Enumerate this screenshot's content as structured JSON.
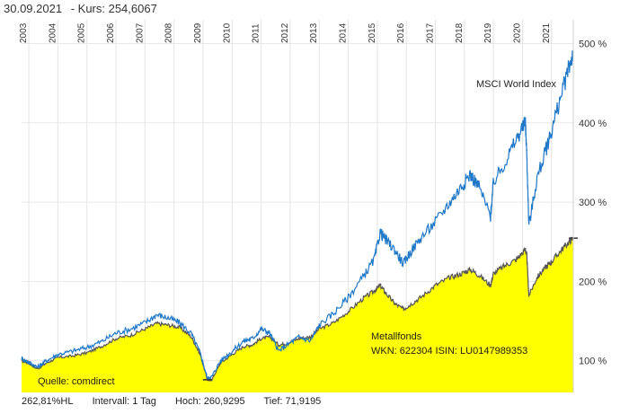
{
  "header": {
    "date": "30.09.2021",
    "price_label": "- Kurs: 254,6067"
  },
  "footer": {
    "performance": "262,81%HL",
    "interval": "Intervall: 1 Tag",
    "high": "Hoch: 260,9295",
    "low": "Tief: 71,9195"
  },
  "chart_data": {
    "type": "area",
    "title": "",
    "xlabel": "",
    "ylabel": "",
    "x_range": [
      2002.75,
      2021.75
    ],
    "ylim": [
      60,
      530
    ],
    "y_tick_values": [
      100,
      200,
      300,
      400,
      500
    ],
    "y_tick_labels": [
      "100 %",
      "200 %",
      "300 %",
      "400 %",
      "500 %"
    ],
    "x_tick_labels": [
      "2003",
      "2004",
      "2005",
      "2006",
      "2007",
      "2008",
      "2009",
      "2010",
      "2011",
      "2012",
      "2013",
      "2014",
      "2015",
      "2016",
      "2017",
      "2018",
      "2019",
      "2020",
      "2021"
    ],
    "grid": true,
    "series": [
      {
        "name": "Metallfonds",
        "color": "#555555",
        "fill": "#ffff00",
        "x": [
          2002.75,
          2003.0,
          2003.3,
          2003.6,
          2004.0,
          2004.5,
          2005.0,
          2005.5,
          2006.0,
          2006.5,
          2007.0,
          2007.4,
          2007.8,
          2008.2,
          2008.6,
          2008.9,
          2009.15,
          2009.3,
          2009.6,
          2010.0,
          2010.4,
          2010.7,
          2011.0,
          2011.3,
          2011.6,
          2011.9,
          2012.3,
          2012.7,
          2013.0,
          2013.5,
          2014.0,
          2014.5,
          2014.9,
          2015.1,
          2015.3,
          2015.6,
          2015.9,
          2016.1,
          2016.5,
          2017.0,
          2017.5,
          2017.9,
          2018.2,
          2018.5,
          2018.9,
          2019.0,
          2019.4,
          2019.8,
          2020.1,
          2020.15,
          2020.22,
          2020.5,
          2020.8,
          2021.0,
          2021.3,
          2021.6,
          2021.75
        ],
        "values": [
          100,
          97,
          90,
          97,
          104,
          106,
          110,
          118,
          128,
          132,
          140,
          147,
          145,
          142,
          130,
          108,
          76,
          76,
          97,
          108,
          118,
          120,
          128,
          130,
          120,
          122,
          128,
          130,
          140,
          148,
          162,
          178,
          188,
          195,
          185,
          172,
          165,
          170,
          180,
          195,
          205,
          210,
          215,
          208,
          195,
          210,
          220,
          228,
          240,
          232,
          182,
          205,
          218,
          225,
          238,
          250,
          254.6
        ]
      },
      {
        "name": "MSCI World Index",
        "color": "#1f78c8",
        "fill": "none",
        "x": [
          2002.75,
          2003.0,
          2003.3,
          2003.6,
          2004.0,
          2004.5,
          2005.0,
          2005.5,
          2006.0,
          2006.5,
          2007.0,
          2007.4,
          2007.8,
          2008.2,
          2008.6,
          2008.9,
          2009.15,
          2009.3,
          2009.6,
          2010.0,
          2010.4,
          2010.7,
          2011.0,
          2011.3,
          2011.6,
          2011.9,
          2012.3,
          2012.7,
          2013.0,
          2013.5,
          2014.0,
          2014.5,
          2014.9,
          2015.1,
          2015.3,
          2015.6,
          2015.9,
          2016.1,
          2016.5,
          2017.0,
          2017.5,
          2017.9,
          2018.2,
          2018.5,
          2018.9,
          2019.0,
          2019.4,
          2019.8,
          2020.1,
          2020.15,
          2020.22,
          2020.5,
          2020.8,
          2021.0,
          2021.3,
          2021.6,
          2021.75
        ],
        "values": [
          103,
          98,
          92,
          100,
          108,
          112,
          117,
          124,
          135,
          140,
          148,
          158,
          154,
          148,
          134,
          110,
          78,
          80,
          100,
          112,
          125,
          128,
          140,
          135,
          112,
          120,
          130,
          125,
          145,
          160,
          180,
          205,
          228,
          262,
          252,
          240,
          222,
          235,
          255,
          275,
          300,
          320,
          335,
          320,
          282,
          325,
          350,
          380,
          400,
          360,
          270,
          330,
          365,
          390,
          430,
          470,
          490
        ]
      }
    ],
    "annotations": {
      "msci_label": "MSCI World Index",
      "fund_name": "Metallfonds",
      "fund_ids": "WKN: 622304 ISIN: LU0147989353",
      "source": "Quelle: comdirect"
    }
  }
}
